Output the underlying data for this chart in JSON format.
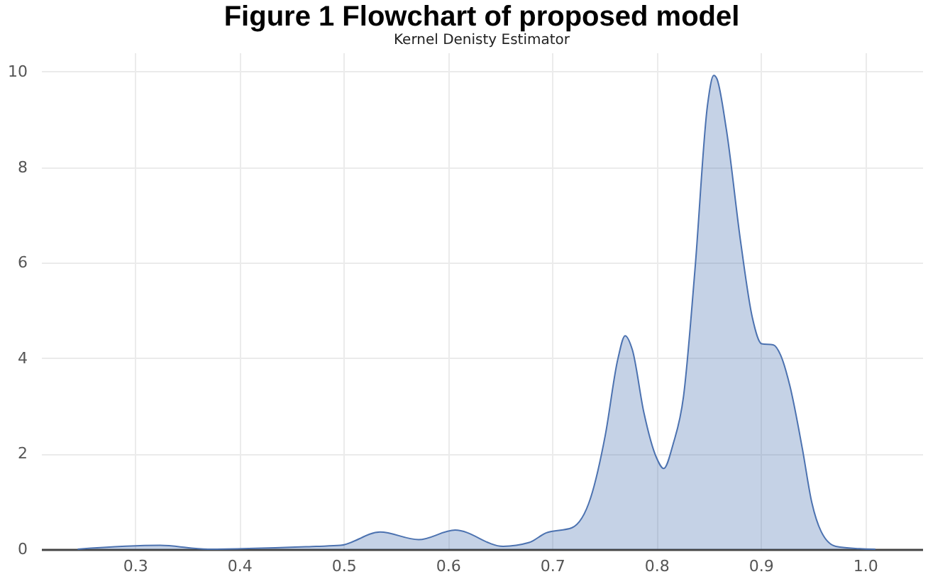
{
  "chart_data": {
    "type": "area",
    "title": "Figure 1 Flowchart of proposed model",
    "subtitle": "Kernel Denisty Estimator",
    "x": [
      0.245,
      0.324,
      0.37,
      0.474,
      0.497,
      0.535,
      0.572,
      0.607,
      0.653,
      0.678,
      0.694,
      0.719,
      0.737,
      0.751,
      0.763,
      0.77,
      0.777,
      0.788,
      0.8,
      0.807,
      0.816,
      0.826,
      0.837,
      0.849,
      0.855,
      0.858,
      0.867,
      0.881,
      0.892,
      0.901,
      0.912,
      0.919,
      0.928,
      0.94,
      0.949,
      0.958,
      0.972,
      0.995,
      1.01
    ],
    "series": [
      {
        "color": "#4c72b0",
        "values": [
          0,
          0.08,
          0,
          0.06,
          0.08,
          0.36,
          0.2,
          0.4,
          0.06,
          0.14,
          0.34,
          0.45,
          1.08,
          2.39,
          3.98,
          4.47,
          4.17,
          2.86,
          1.92,
          1.69,
          2.2,
          3.2,
          5.86,
          9.3,
          9.92,
          9.85,
          8.8,
          6.4,
          4.85,
          4.3,
          4.28,
          4.07,
          3.42,
          2.1,
          0.98,
          0.37,
          0.06,
          0.01,
          0
        ]
      }
    ],
    "xlim": [
      0.21,
      1.055
    ],
    "xticks": [
      0.3,
      0.4,
      0.5,
      0.6,
      0.7,
      0.8,
      0.9,
      {
        "value": 1,
        "label": "1.0"
      }
    ],
    "ylim": [
      0,
      10.4
    ],
    "yticks": [
      0,
      2,
      4,
      6,
      8,
      10
    ],
    "grid": true
  }
}
